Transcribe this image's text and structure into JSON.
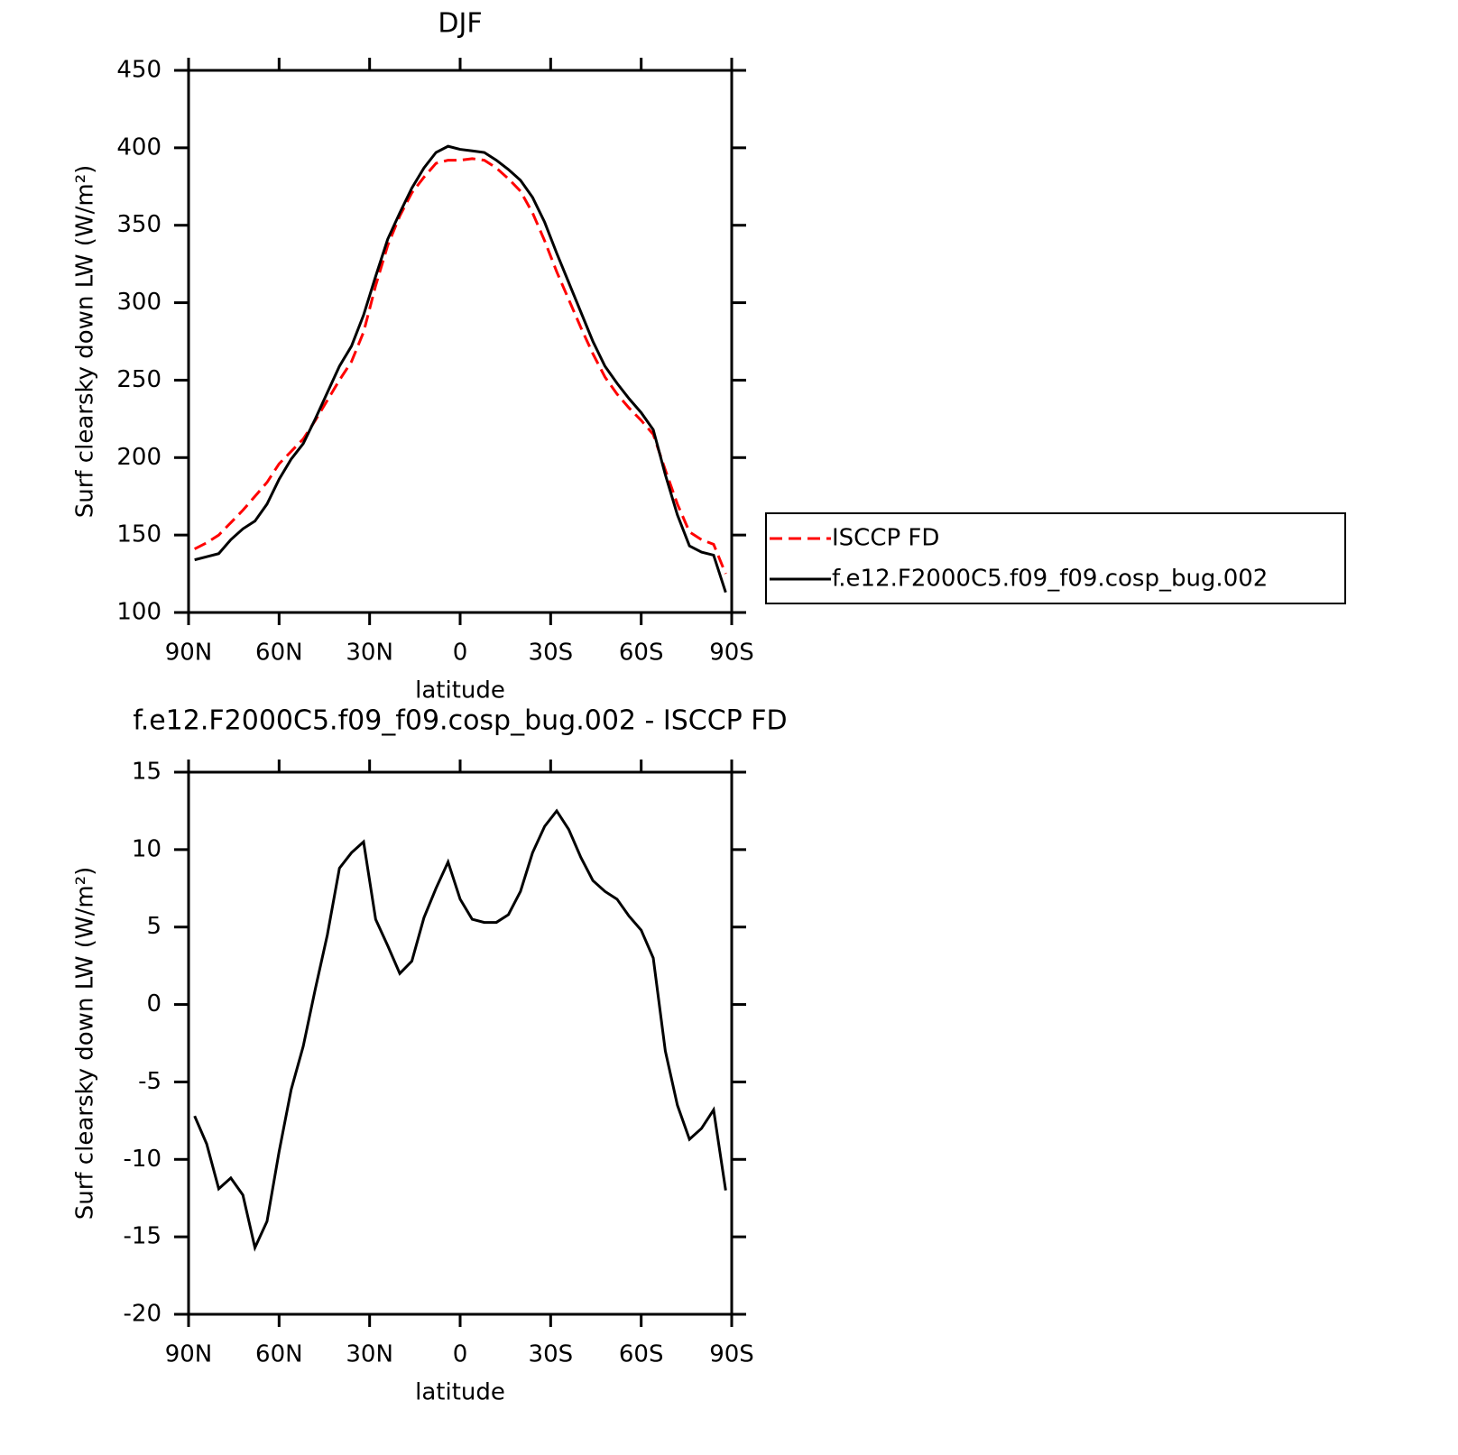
{
  "chart_data": [
    {
      "type": "line",
      "title": "DJF",
      "xlabel": "latitude",
      "ylabel": "Surf clearsky down LW (W/m²)",
      "x": [
        88,
        84,
        80,
        76,
        72,
        68,
        64,
        60,
        56,
        52,
        48,
        44,
        40,
        36,
        32,
        28,
        24,
        20,
        16,
        12,
        8,
        4,
        0,
        -4,
        -8,
        -12,
        -16,
        -20,
        -24,
        -28,
        -32,
        -36,
        -40,
        -44,
        -48,
        -52,
        -56,
        -60,
        -64,
        -68,
        -72,
        -76,
        -80,
        -84,
        -88
      ],
      "series": [
        {
          "name": "ISCCP FD",
          "color": "#ff0000",
          "dash": true,
          "values": [
            141,
            145,
            150,
            158,
            166,
            175,
            184,
            196,
            204,
            212,
            224,
            237,
            250,
            262,
            281,
            311,
            337,
            356,
            371,
            381,
            390,
            392,
            392,
            393,
            392,
            387,
            380,
            372,
            358,
            340,
            320,
            302,
            284,
            267,
            252,
            241,
            232,
            224,
            215,
            192,
            170,
            152,
            147,
            144,
            125
          ]
        },
        {
          "name": "f.e12.F2000C5.f09_f09.cosp_bug.002",
          "color": "#000000",
          "dash": false,
          "values": [
            134,
            136,
            138,
            147,
            154,
            159,
            170,
            186,
            199,
            209,
            225,
            242,
            259,
            272,
            292,
            317,
            341,
            358,
            374,
            387,
            397,
            401,
            399,
            398,
            397,
            392,
            386,
            379,
            368,
            352,
            332,
            313,
            294,
            275,
            259,
            248,
            238,
            229,
            218,
            189,
            163,
            143,
            139,
            137,
            113
          ]
        }
      ],
      "xlim": [
        90,
        -90
      ],
      "xticks": [
        {
          "value": 90,
          "label": "90N"
        },
        {
          "value": 60,
          "label": "60N"
        },
        {
          "value": 30,
          "label": "30N"
        },
        0,
        {
          "value": -30,
          "label": "30S"
        },
        {
          "value": -60,
          "label": "60S"
        },
        {
          "value": -90,
          "label": "90S"
        }
      ],
      "ylim": [
        100,
        450
      ],
      "yticks": [
        100,
        150,
        200,
        250,
        300,
        350,
        400,
        450
      ],
      "legend": "right"
    },
    {
      "type": "line",
      "title": "f.e12.F2000C5.f09_f09.cosp_bug.002 - ISCCP FD",
      "xlabel": "latitude",
      "ylabel": "Surf clearsky down LW (W/m²)",
      "x": [
        88,
        84,
        80,
        76,
        72,
        68,
        64,
        60,
        56,
        52,
        48,
        44,
        40,
        36,
        32,
        28,
        24,
        20,
        16,
        12,
        8,
        4,
        0,
        -4,
        -8,
        -12,
        -16,
        -20,
        -24,
        -28,
        -32,
        -36,
        -40,
        -44,
        -48,
        -52,
        -56,
        -60,
        -64,
        -68,
        -72,
        -76,
        -80,
        -84,
        -88
      ],
      "series": [
        {
          "color": "#000000",
          "dash": false,
          "values": [
            -7.2,
            -9,
            -11.9,
            -11.2,
            -12.3,
            -15.7,
            -14,
            -9.5,
            -5.5,
            -2.7,
            1,
            4.5,
            8.8,
            9.8,
            10.5,
            5.5,
            3.8,
            2,
            2.8,
            5.6,
            7.5,
            9.2,
            6.8,
            5.5,
            5.3,
            5.3,
            5.8,
            7.3,
            9.8,
            11.5,
            12.5,
            11.3,
            9.5,
            8,
            7.3,
            6.8,
            5.7,
            4.8,
            3,
            -3,
            -6.5,
            -8.7,
            -8,
            -6.8,
            -12
          ]
        }
      ],
      "xlim": [
        90,
        -90
      ],
      "xticks": [
        {
          "value": 90,
          "label": "90N"
        },
        {
          "value": 60,
          "label": "60N"
        },
        {
          "value": 30,
          "label": "30N"
        },
        0,
        {
          "value": -30,
          "label": "30S"
        },
        {
          "value": -60,
          "label": "60S"
        },
        {
          "value": -90,
          "label": "90S"
        }
      ],
      "ylim": [
        -20,
        15
      ],
      "yticks": [
        -20,
        -15,
        -10,
        -5,
        0,
        5,
        10,
        15
      ]
    }
  ]
}
